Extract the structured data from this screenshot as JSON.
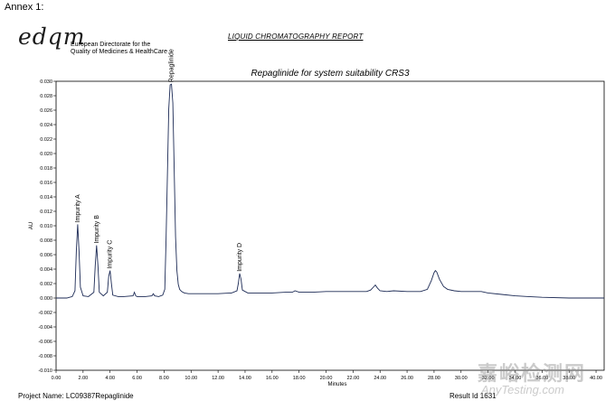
{
  "header": {
    "annex_label": "Annex 1:",
    "logo_text": "edqm",
    "logo_line1": "European Directorate for the",
    "logo_line2": "Quality of Medicines & HealthCare",
    "report_title": "LIQUID CHROMATOGRAPHY REPORT"
  },
  "footer": {
    "project": "Project Name: LC09387Repaglinide",
    "result": "Result Id 1631"
  },
  "watermark": {
    "cn": "嘉峪检测网",
    "en": "AnyTesting.com"
  },
  "chart_data": {
    "type": "line",
    "title": "Repaglinide for system suitability CRS3",
    "xlabel": "Minutes",
    "ylabel": "AU",
    "xlim": [
      0,
      40.6
    ],
    "ylim": [
      -0.01,
      0.03
    ],
    "xticks": [
      "0.00",
      "2.00",
      "4.00",
      "6.00",
      "8.00",
      "10.00",
      "12.00",
      "14.00",
      "16.00",
      "18.00",
      "20.00",
      "22.00",
      "24.00",
      "26.00",
      "28.00",
      "30.00",
      "32.00",
      "34.00",
      "36.00",
      "38.00",
      "40.00"
    ],
    "yticks": [
      "-0.010",
      "-0.008",
      "-0.006",
      "-0.004",
      "-0.002",
      "0.000",
      "0.002",
      "0.004",
      "0.006",
      "0.008",
      "0.010",
      "0.012",
      "0.014",
      "0.016",
      "0.018",
      "0.020",
      "0.022",
      "0.024",
      "0.026",
      "0.028",
      "0.030"
    ],
    "grid": false,
    "line_color": "#1c2a55",
    "peak_labels": [
      "Impurity A",
      "Impurity B",
      "Impurity C",
      "Repaglinide",
      "Impurity D"
    ],
    "x": [
      0.0,
      0.8,
      1.0,
      1.2,
      1.4,
      1.5,
      1.6,
      1.7,
      1.8,
      2.0,
      2.4,
      2.8,
      2.9,
      3.0,
      3.1,
      3.2,
      3.5,
      3.8,
      3.9,
      4.0,
      4.1,
      4.2,
      4.6,
      5.0,
      5.7,
      5.8,
      5.9,
      6.0,
      6.6,
      7.1,
      7.2,
      7.3,
      7.6,
      7.9,
      8.05,
      8.15,
      8.25,
      8.35,
      8.45,
      8.55,
      8.65,
      8.75,
      8.85,
      8.95,
      9.05,
      9.15,
      9.3,
      9.5,
      9.8,
      10.2,
      11.0,
      12.0,
      13.0,
      13.4,
      13.5,
      13.6,
      13.7,
      13.8,
      14.2,
      15.0,
      16.0,
      17.0,
      17.5,
      17.7,
      18.0,
      18.5,
      19.0,
      20.0,
      21.0,
      22.0,
      22.5,
      23.0,
      23.3,
      23.5,
      23.65,
      23.8,
      24.0,
      24.5,
      25.0,
      26.0,
      27.0,
      27.5,
      27.8,
      28.0,
      28.1,
      28.2,
      28.4,
      28.7,
      29.0,
      29.5,
      30.0,
      31.0,
      31.5,
      32.0,
      33.0,
      34.0,
      35.0,
      36.0,
      38.0,
      40.0,
      40.6
    ],
    "y": [
      0.0,
      0.0,
      0.0001,
      0.0002,
      0.001,
      0.0065,
      0.0102,
      0.0065,
      0.0015,
      0.0003,
      0.0002,
      0.0008,
      0.0045,
      0.0073,
      0.0045,
      0.0008,
      0.0003,
      0.0008,
      0.003,
      0.0038,
      0.002,
      0.0004,
      0.0002,
      0.0002,
      0.0003,
      0.0008,
      0.0003,
      0.0002,
      0.0002,
      0.0003,
      0.0006,
      0.0003,
      0.0002,
      0.0004,
      0.0012,
      0.008,
      0.017,
      0.0262,
      0.0295,
      0.0296,
      0.027,
      0.0178,
      0.0085,
      0.0038,
      0.0019,
      0.0012,
      0.0009,
      0.0007,
      0.0006,
      0.0006,
      0.0006,
      0.0006,
      0.0007,
      0.001,
      0.002,
      0.0034,
      0.0026,
      0.0011,
      0.0007,
      0.0007,
      0.0007,
      0.0008,
      0.0008,
      0.001,
      0.0008,
      0.0008,
      0.0008,
      0.0009,
      0.0009,
      0.0009,
      0.0009,
      0.0009,
      0.0011,
      0.0015,
      0.0018,
      0.0014,
      0.001,
      0.0009,
      0.001,
      0.0009,
      0.0009,
      0.0012,
      0.0024,
      0.0035,
      0.0038,
      0.0036,
      0.0026,
      0.0016,
      0.0012,
      0.001,
      0.0009,
      0.0009,
      0.0009,
      0.0007,
      0.0005,
      0.0003,
      0.0002,
      0.0001,
      0.0,
      0.0,
      0.0
    ]
  }
}
